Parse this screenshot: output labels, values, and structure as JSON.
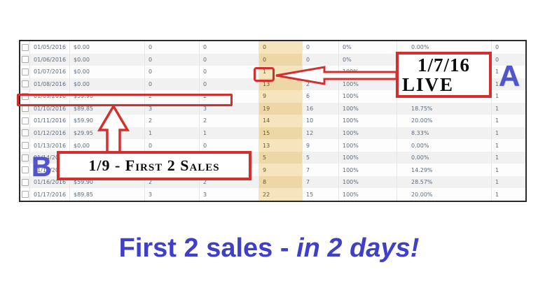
{
  "table": {
    "highlighted_column_index": 4,
    "highlight_color": "#f0dbae",
    "rows": [
      [
        "01/05/2016",
        "$0.00",
        "0",
        "0",
        "0",
        "0",
        "0%",
        "0.00%",
        "0"
      ],
      [
        "01/06/2016",
        "$0.00",
        "0",
        "0",
        "0",
        "0",
        "0%",
        "",
        "0"
      ],
      [
        "01/07/2016",
        "$0.00",
        "0",
        "0",
        "1",
        "1",
        "100%",
        "",
        "1"
      ],
      [
        "01/08/2016",
        "$0.00",
        "0",
        "0",
        "13",
        "2",
        "100%",
        "",
        "1"
      ],
      [
        "01/09/2016",
        "$59.90",
        "2",
        "2",
        "9",
        "6",
        "100%",
        "33.33%",
        "1"
      ],
      [
        "01/10/2016",
        "$89.85",
        "3",
        "3",
        "19",
        "16",
        "100%",
        "18.75%",
        "1"
      ],
      [
        "01/11/2016",
        "$59.90",
        "2",
        "2",
        "14",
        "10",
        "100%",
        "20.00%",
        "1"
      ],
      [
        "01/12/2016",
        "$29.95",
        "1",
        "1",
        "15",
        "12",
        "100%",
        "8.33%",
        "1"
      ],
      [
        "01/13/2016",
        "$0.00",
        "0",
        "0",
        "13",
        "9",
        "100%",
        "0.00%",
        "1"
      ],
      [
        "01/14/2016",
        "",
        "",
        "",
        "5",
        "5",
        "100%",
        "0.00%",
        "1"
      ],
      [
        "01/15/2016",
        "",
        "",
        "",
        "9",
        "7",
        "100%",
        "14.29%",
        "1"
      ],
      [
        "01/16/2016",
        "$59.90",
        "2",
        "2",
        "8",
        "7",
        "100%",
        "28.57%",
        "1"
      ],
      [
        "01/17/2016",
        "$89.85",
        "3",
        "3",
        "22",
        "15",
        "100%",
        "20.00%",
        "1"
      ]
    ]
  },
  "annotations": {
    "live_line1": "1/7/16",
    "live_line2": "LIVE",
    "sales_text": "1/9 - First 2 Sales",
    "label_a": "A",
    "label_b": "B",
    "annotation_red": "#d32f2f",
    "label_blue": "#4f55cf"
  },
  "caption": {
    "normal": "First 2 sales - ",
    "italic": "in 2 days!",
    "color": "#3f3fca"
  }
}
